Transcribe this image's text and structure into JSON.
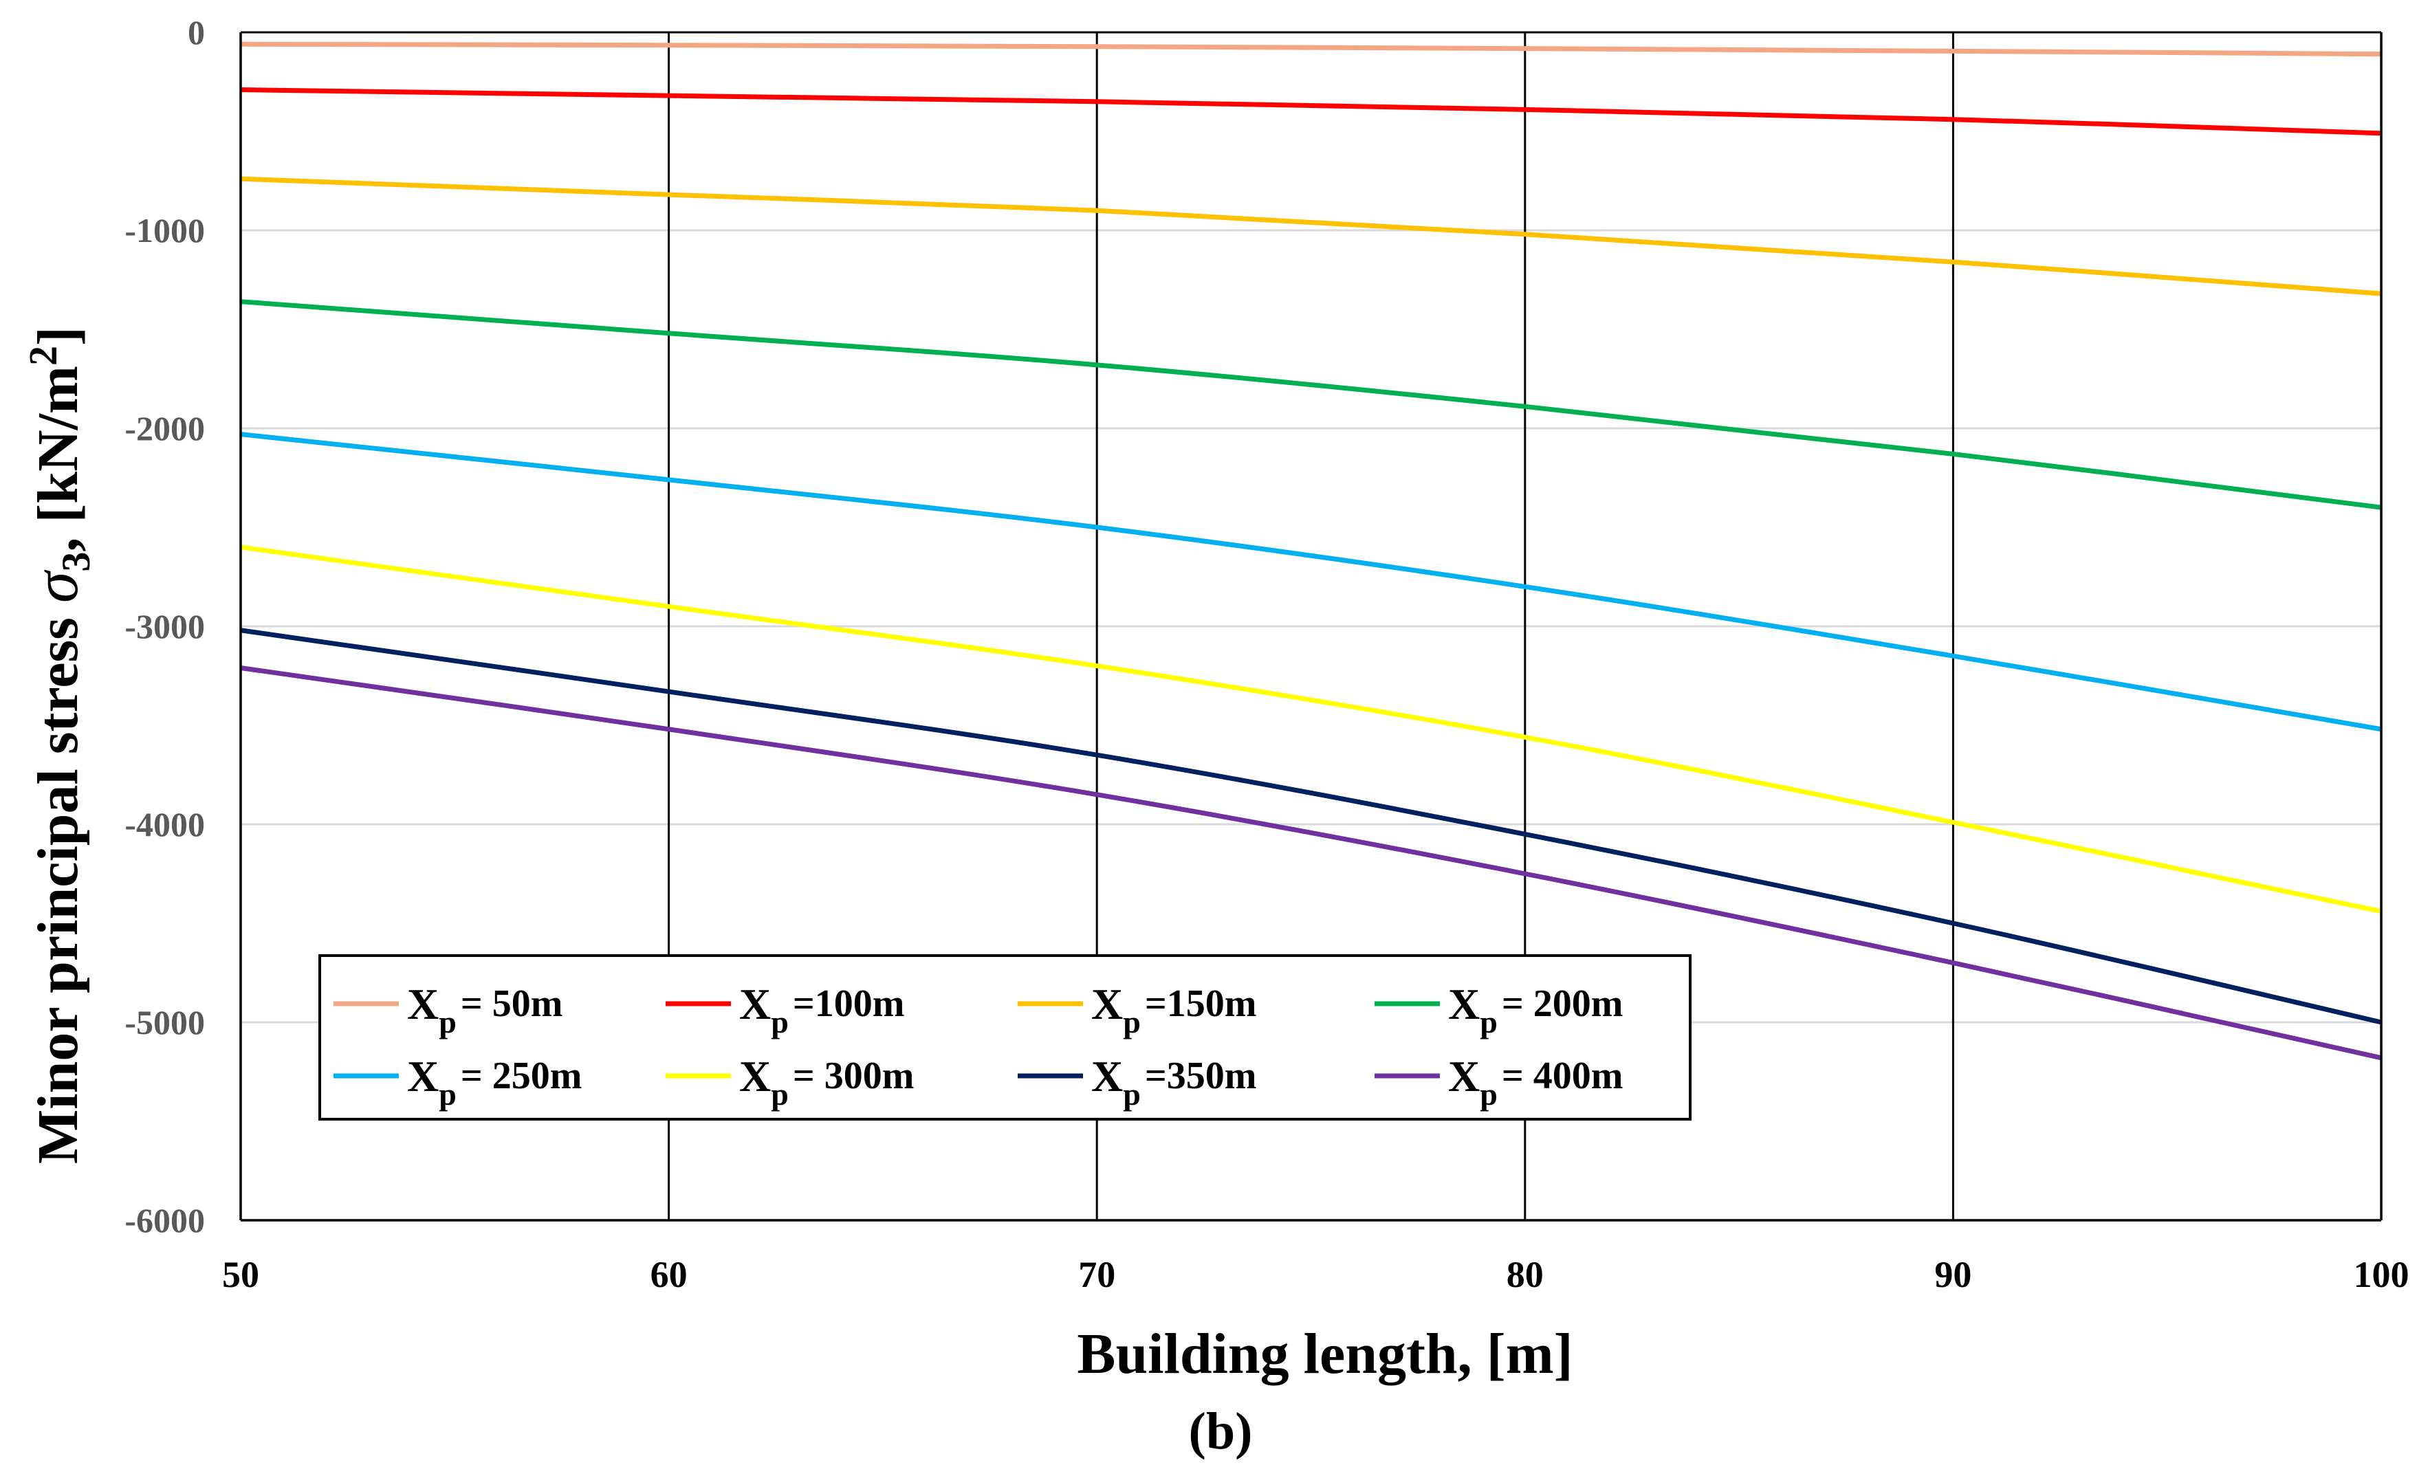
{
  "chart_data": {
    "type": "line",
    "xlabel": "Building length, [m]",
    "ylabel_main": "Minor principal stress ",
    "ylabel_symbol": "σ",
    "ylabel_sub": "3",
    "ylabel_unit_a": ", [kN/m",
    "ylabel_unit_sup": "2",
    "ylabel_unit_b": "]",
    "panel_label": "(b)",
    "xlim": [
      50,
      100
    ],
    "ylim": [
      -6000,
      0
    ],
    "xticks": [
      50,
      60,
      70,
      80,
      90,
      100
    ],
    "yticks": [
      0,
      -1000,
      -2000,
      -3000,
      -4000,
      -5000,
      -6000
    ],
    "vertical_grid": true,
    "horizontal_grid": true,
    "legend_position": "lower-left",
    "legend_prefix": "X",
    "legend_prefix_sub": "p",
    "x": [
      50,
      60,
      70,
      80,
      90,
      100
    ],
    "series": [
      {
        "name": "= 50m",
        "color": "#f4a582",
        "values": [
          -60,
          -65,
          -72,
          -82,
          -95,
          -110
        ]
      },
      {
        "name": "=100m",
        "color": "#ff0000",
        "values": [
          -290,
          -320,
          -350,
          -390,
          -440,
          -510
        ]
      },
      {
        "name": "=150m",
        "color": "#ffc000",
        "values": [
          -740,
          -820,
          -900,
          -1020,
          -1160,
          -1320
        ]
      },
      {
        "name": "= 200m",
        "color": "#00b050",
        "values": [
          -1360,
          -1520,
          -1680,
          -1890,
          -2130,
          -2400
        ]
      },
      {
        "name": "= 250m",
        "color": "#00b0f0",
        "values": [
          -2030,
          -2260,
          -2500,
          -2800,
          -3150,
          -3520
        ]
      },
      {
        "name": "= 300m",
        "color": "#ffff00",
        "values": [
          -2600,
          -2900,
          -3200,
          -3560,
          -3990,
          -4440
        ]
      },
      {
        "name": "=350m",
        "color": "#002060",
        "values": [
          -3020,
          -3330,
          -3650,
          -4050,
          -4500,
          -5000
        ]
      },
      {
        "name": "= 400m",
        "color": "#7030a0",
        "values": [
          -3210,
          -3520,
          -3850,
          -4250,
          -4700,
          -5180
        ]
      }
    ]
  }
}
